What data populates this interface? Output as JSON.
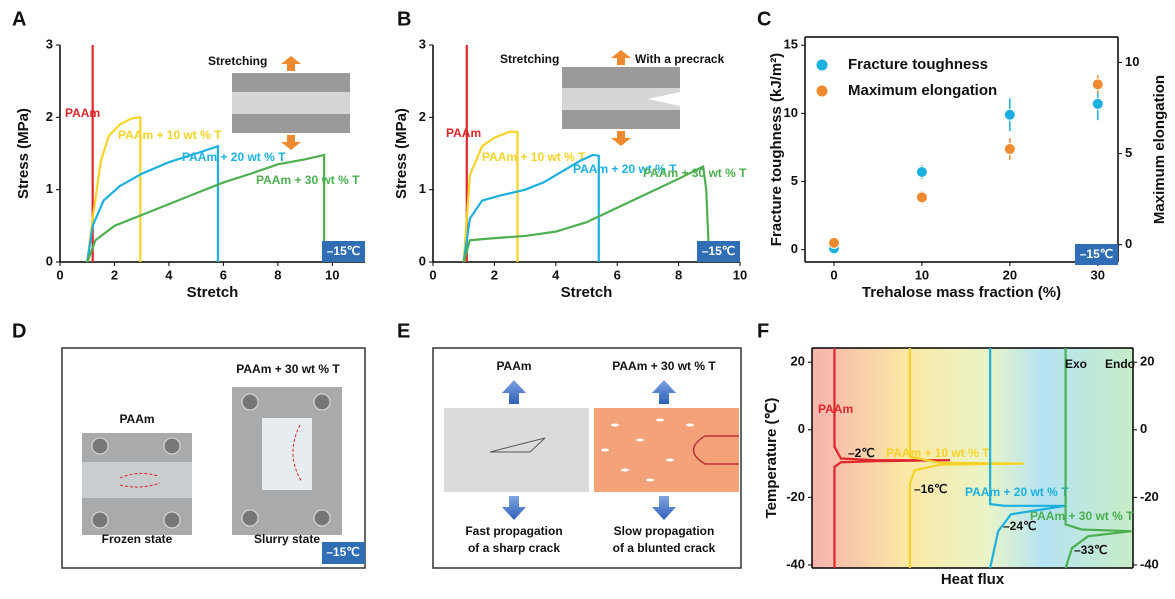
{
  "chart_data": [
    {
      "type": "line",
      "panel_label": "A",
      "xlabel": "Stretch",
      "ylabel": "Stress (MPa)",
      "xlim": [
        0,
        11.2
      ],
      "xticks": [
        0,
        2,
        4,
        6,
        8,
        10
      ],
      "ylim": [
        0,
        3
      ],
      "yticks": [
        0,
        1,
        2,
        3
      ],
      "annotations": [
        "Stretching"
      ],
      "badge": "–15℃",
      "series": [
        {
          "name": "PAAm",
          "color": "#e0262a",
          "x": [
            1.2,
            1.2
          ],
          "values": [
            0,
            3
          ]
        },
        {
          "name": "PAAm + 10 wt % T",
          "color": "#f5d327",
          "x": [
            1.0,
            1.2,
            1.5,
            1.8,
            2.2,
            2.6,
            2.9,
            2.95,
            2.95
          ],
          "values": [
            0,
            0.6,
            1.4,
            1.75,
            1.9,
            1.98,
            2.0,
            2.0,
            0
          ]
        },
        {
          "name": "PAAm + 20 wt % T",
          "color": "#1ab0e0",
          "x": [
            1.0,
            1.2,
            1.6,
            2.2,
            3,
            4,
            5,
            5.8,
            5.8
          ],
          "values": [
            0,
            0.5,
            0.85,
            1.05,
            1.22,
            1.38,
            1.5,
            1.6,
            0
          ]
        },
        {
          "name": "PAAm + 30 wt % T",
          "color": "#4caf50",
          "x": [
            1.0,
            1.3,
            2,
            3,
            4,
            5,
            6,
            7,
            8,
            9,
            9.7,
            9.7
          ],
          "values": [
            0,
            0.3,
            0.5,
            0.65,
            0.8,
            0.95,
            1.1,
            1.22,
            1.35,
            1.42,
            1.48,
            0
          ]
        }
      ]
    },
    {
      "type": "line",
      "panel_label": "B",
      "xlabel": "Stretch",
      "ylabel": "Stress (MPa)",
      "xlim": [
        0,
        10
      ],
      "xticks": [
        0,
        2,
        4,
        6,
        8,
        10
      ],
      "ylim": [
        0,
        3
      ],
      "yticks": [
        0,
        1,
        2,
        3
      ],
      "annotations": [
        "Stretching",
        "With a precrack"
      ],
      "badge": "–15℃",
      "series": [
        {
          "name": "PAAm",
          "color": "#e0262a",
          "x": [
            1.1,
            1.1
          ],
          "values": [
            0,
            3
          ]
        },
        {
          "name": "PAAm + 10 wt % T",
          "color": "#f5d327",
          "x": [
            1.0,
            1.2,
            1.6,
            2.0,
            2.5,
            2.75,
            2.75
          ],
          "values": [
            0,
            1.2,
            1.6,
            1.72,
            1.8,
            1.8,
            0
          ]
        },
        {
          "name": "PAAm + 20 wt % T",
          "color": "#1ab0e0",
          "x": [
            1,
            1.2,
            1.6,
            2.2,
            3,
            3.6,
            4.2,
            4.8,
            5.2,
            5.4,
            5.4
          ],
          "values": [
            0,
            0.6,
            0.85,
            0.92,
            1.0,
            1.1,
            1.25,
            1.4,
            1.48,
            1.47,
            0
          ]
        },
        {
          "name": "PAAm + 30 wt % T",
          "color": "#4caf50",
          "x": [
            1,
            1.2,
            2,
            3,
            4,
            5,
            6,
            7,
            8,
            8.8,
            8.9,
            9.0
          ],
          "values": [
            0,
            0.3,
            0.33,
            0.36,
            0.42,
            0.55,
            0.75,
            0.95,
            1.15,
            1.32,
            1.0,
            0
          ]
        }
      ]
    },
    {
      "type": "scatter",
      "panel_label": "C",
      "xlabel": "Trehalose mass fraction (%)",
      "ylabel": "Fracture toughness (kJ/m²)",
      "y2label": "Maximum elongation",
      "x": [
        0,
        10,
        20,
        30
      ],
      "xlim": [
        -3.3,
        32.3
      ],
      "xticks": [
        0,
        10,
        20,
        30
      ],
      "ylim": [
        -0.9,
        15.6
      ],
      "yticks": [
        0,
        5,
        10,
        15
      ],
      "y2lim": [
        -0.95,
        11.4
      ],
      "y2ticks": [
        0,
        5,
        10
      ],
      "legend": "upper left",
      "badge": "–15℃",
      "series": [
        {
          "name": "Fracture toughness",
          "color": "#1ab0e0",
          "values": [
            0.1,
            5.7,
            9.9,
            10.7
          ],
          "errors": [
            0.2,
            0.5,
            1.2,
            1.2
          ]
        },
        {
          "name": "Maximum elongation",
          "color": "#f08a30",
          "axis": "y2",
          "values": [
            0.1,
            2.6,
            5.25,
            8.8
          ],
          "errors": [
            0.1,
            0.35,
            0.6,
            0.5
          ]
        }
      ]
    },
    {
      "type": "line",
      "panel_label": "F",
      "xlabel": "Heat flux",
      "ylabel": "Temperature (℃)",
      "xlim": [
        0,
        100
      ],
      "ylim": [
        -40.9,
        24.2
      ],
      "yticks": [
        -40,
        -20,
        0,
        20
      ],
      "y2lim": [
        -40.9,
        24.2
      ],
      "y2ticks": [
        -40,
        -20,
        0,
        20
      ],
      "annotations": [
        "Exo",
        "Endo",
        "–2℃",
        "–16℃",
        "–24℃",
        "–33℃"
      ],
      "series": [
        {
          "name": "PAAm",
          "color": "#e0262a",
          "x": [
            7,
            7,
            9,
            20,
            43,
            20,
            9,
            7,
            7
          ],
          "values": [
            24.2,
            -5,
            -8.5,
            -9,
            -9,
            -9.3,
            -9.6,
            -11,
            -40.9
          ]
        },
        {
          "name": "PAAm + 10 wt % T",
          "color": "#f5d327",
          "x": [
            30.5,
            30.5,
            40,
            66,
            40,
            32,
            30.5,
            30.5
          ],
          "values": [
            24.2,
            -8,
            -9.8,
            -10,
            -10.3,
            -12,
            -16,
            -40.9
          ]
        },
        {
          "name": "PAAm + 20 wt % T",
          "color": "#1ab0e0",
          "x": [
            55.5,
            55.5,
            60,
            79,
            62,
            58,
            55.5
          ],
          "values": [
            24.2,
            -22,
            -22.5,
            -22.5,
            -25,
            -30,
            -40.9
          ]
        },
        {
          "name": "PAAm + 30 wt % T",
          "color": "#4caf50",
          "x": [
            79,
            79,
            84,
            99.5,
            86,
            81,
            79
          ],
          "values": [
            24.2,
            -28,
            -29.5,
            -30,
            -31.5,
            -35,
            -40.9
          ]
        }
      ]
    }
  ],
  "panel_d": {
    "panel_label": "D",
    "left_title": "PAAm",
    "right_title": "PAAm + 30 wt % T",
    "left_caption": "Frozen state",
    "right_caption": "Slurry state",
    "badge": "–15℃"
  },
  "panel_e": {
    "panel_label": "E",
    "left_title": "PAAm",
    "right_title": "PAAm + 30 wt % T",
    "left_caption": [
      "Fast propagation",
      "of a sharp crack"
    ],
    "right_caption": [
      "Slow propagation",
      "of a blunted crack"
    ]
  }
}
